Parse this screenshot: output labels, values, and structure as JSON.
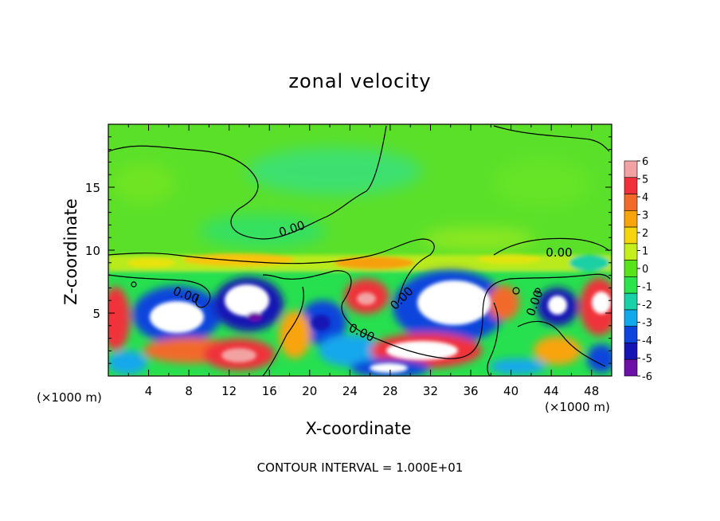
{
  "chart_data": {
    "type": "heatmap",
    "title": "zonal velocity",
    "xlabel": "X-coordinate",
    "ylabel": "Z-coordinate",
    "x_unit_label": "(×1000 m)",
    "xlim": [
      0,
      50
    ],
    "ylim": [
      0,
      20
    ],
    "x_ticks": [
      4,
      8,
      12,
      16,
      20,
      24,
      28,
      32,
      36,
      40,
      44,
      48
    ],
    "y_ticks": [
      5,
      10,
      15
    ],
    "colorbar": {
      "min": -6,
      "max": 6,
      "labels": [
        "6",
        "5",
        "4",
        "3",
        "2",
        "1",
        "0",
        "-1",
        "-2",
        "-3",
        "-4",
        "-5",
        "-6"
      ],
      "colors": [
        "#f2a2a2",
        "#f0303a",
        "#f26a2a",
        "#f8a40c",
        "#f4d40c",
        "#c4ee1c",
        "#58e41c",
        "#2ce44c",
        "#1ad0a6",
        "#12a8ec",
        "#0c44dc",
        "#1414b4",
        "#6c10a8"
      ]
    },
    "contour_label": "0.00",
    "contour_interval_text": "CONTOUR INTERVAL = 1.000E+01"
  }
}
